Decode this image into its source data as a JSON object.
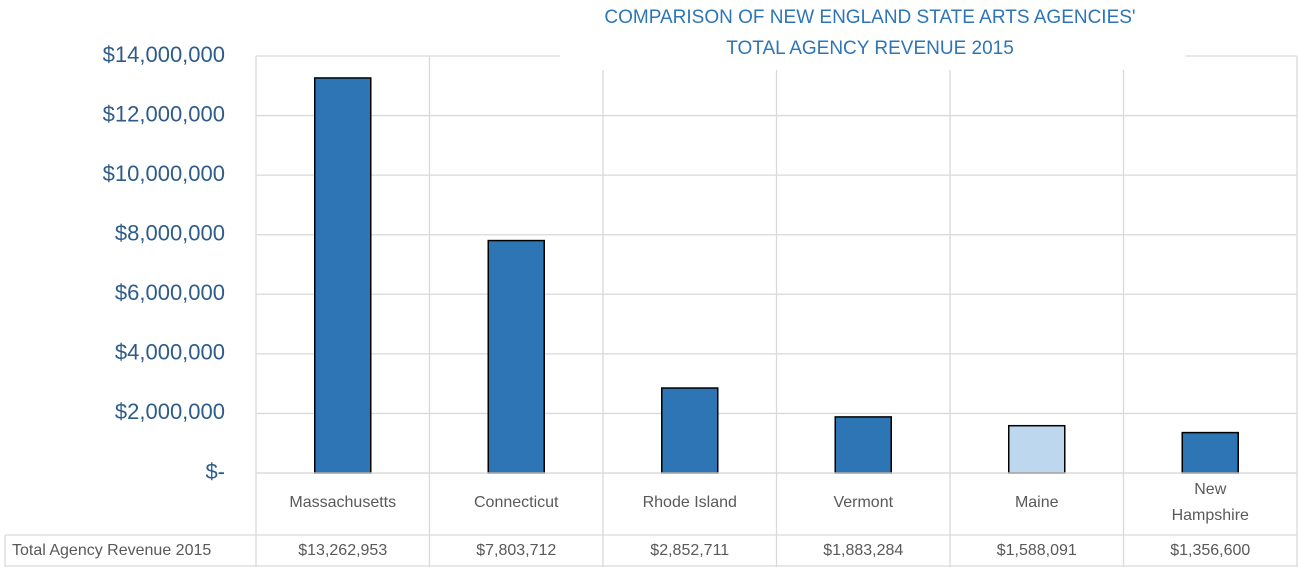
{
  "chart_data": {
    "type": "bar",
    "title": [
      "COMPARISON OF NEW ENGLAND STATE ARTS AGENCIES'",
      "TOTAL AGENCY REVENUE 2015"
    ],
    "categories": [
      "Massachusetts",
      "Connecticut",
      "Rhode Island",
      "Vermont",
      "Maine",
      "New Hampshire"
    ],
    "series": [
      {
        "name": "Total Agency Revenue 2015",
        "colors": [
          "#2e75b6",
          "#2e75b6",
          "#2e75b6",
          "#2e75b6",
          "#bdd7ee",
          "#2e75b6"
        ],
        "values": [
          13262953,
          7803712,
          2852711,
          1883284,
          1588091,
          1356600
        ],
        "value_labels": [
          "$13,262,953",
          "$7,803,712",
          "$2,852,711",
          "$1,883,284",
          "$1,588,091",
          "$1,356,600"
        ]
      }
    ],
    "ylim": [
      0,
      14000000
    ],
    "yticks": [
      {
        "value": 0,
        "label": "$-"
      },
      {
        "value": 2000000,
        "label": "$2,000,000"
      },
      {
        "value": 4000000,
        "label": "$4,000,000"
      },
      {
        "value": 6000000,
        "label": "$6,000,000"
      },
      {
        "value": 8000000,
        "label": "$8,000,000"
      },
      {
        "value": 10000000,
        "label": "$10,000,000"
      },
      {
        "value": 12000000,
        "label": "$12,000,000"
      },
      {
        "value": 14000000,
        "label": "$14,000,000"
      }
    ],
    "grid": true,
    "data_table": true
  }
}
